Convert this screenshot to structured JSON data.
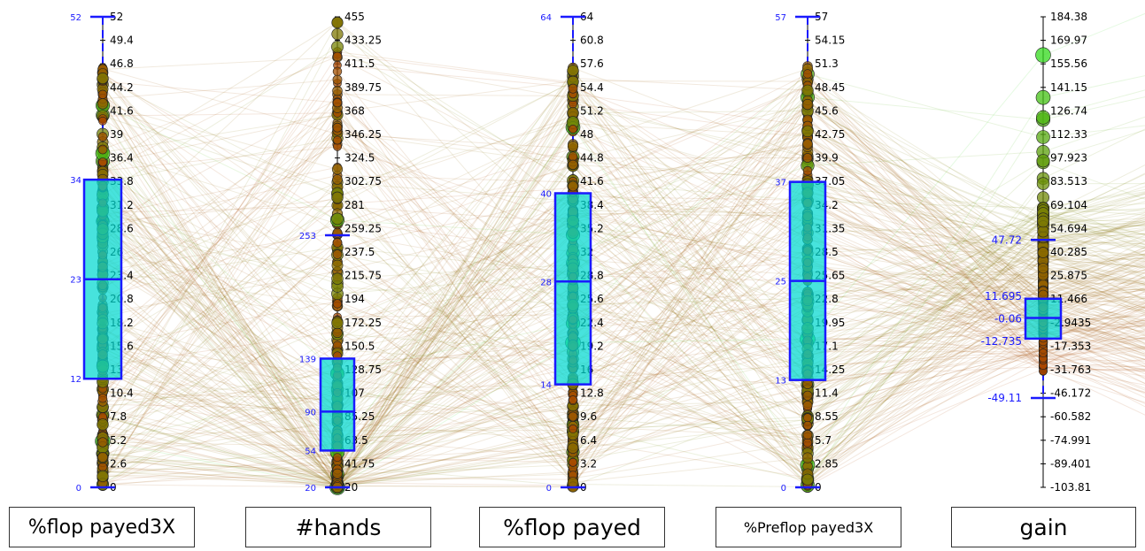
{
  "chart_data": {
    "type": "parallel-coordinates",
    "axes": [
      {
        "label": "%flop payed3X",
        "min": 0,
        "max": 52,
        "ticks": [
          "52",
          "49.4",
          "46.8",
          "44.2",
          "41.6",
          "39",
          "36.4",
          "33.8",
          "31.2",
          "28.6",
          "26",
          "23.4",
          "20.8",
          "18.2",
          "15.6",
          "13",
          "10.4",
          "7.8",
          "5.2",
          "2.6",
          "0"
        ],
        "box": {
          "q1": 12,
          "median": 23,
          "q3": 34,
          "whisker_low": 0,
          "whisker_high": 52
        },
        "box_labels": {
          "low": "0",
          "q1": "12",
          "median": "23",
          "q3": "34",
          "high": "52"
        }
      },
      {
        "label": "#hands",
        "min": 20,
        "max": 455,
        "ticks": [
          "455",
          "433.25",
          "411.5",
          "389.75",
          "368",
          "346.25",
          "324.5",
          "302.75",
          "281",
          "259.25",
          "237.5",
          "215.75",
          "194",
          "172.25",
          "150.5",
          "128.75",
          "107",
          "85.25",
          "63.5",
          "41.75",
          "20"
        ],
        "box": {
          "q1": 54,
          "median": 90,
          "q3": 139,
          "whisker_low": 20,
          "whisker_high": 253
        },
        "box_labels": {
          "low": "20",
          "q1": "54",
          "median": "90",
          "q3": "139",
          "high": "253"
        }
      },
      {
        "label": "%flop payed",
        "min": 0,
        "max": 64,
        "ticks": [
          "64",
          "60.8",
          "57.6",
          "54.4",
          "51.2",
          "48",
          "44.8",
          "41.6",
          "38.4",
          "35.2",
          "32",
          "28.8",
          "25.6",
          "22.4",
          "19.2",
          "16",
          "12.8",
          "9.6",
          "6.4",
          "3.2",
          "0"
        ],
        "box": {
          "q1": 14,
          "median": 28,
          "q3": 40,
          "whisker_low": 0,
          "whisker_high": 64
        },
        "box_labels": {
          "low": "0",
          "q1": "14",
          "median": "28",
          "q3": "40",
          "high": "64"
        }
      },
      {
        "label": "%Preflop payed3X",
        "min": 0,
        "max": 57,
        "ticks": [
          "57",
          "54.15",
          "51.3",
          "48.45",
          "45.6",
          "42.75",
          "39.9",
          "37.05",
          "34.2",
          "31.35",
          "28.5",
          "25.65",
          "22.8",
          "19.95",
          "17.1",
          "14.25",
          "11.4",
          "8.55",
          "5.7",
          "2.85",
          "0"
        ],
        "box": {
          "q1": 13,
          "median": 25,
          "q3": 37,
          "whisker_low": 0,
          "whisker_high": 57
        },
        "box_labels": {
          "low": "0",
          "q1": "13",
          "median": "25",
          "q3": "37",
          "high": "57"
        }
      },
      {
        "label": "gain",
        "min": -103.81,
        "max": 184.38,
        "ticks": [
          "184.38",
          "169.97",
          "155.56",
          "141.15",
          "126.74",
          "112.33",
          "97.923",
          "83.513",
          "69.104",
          "54.694",
          "40.285",
          "25.875",
          "11.466",
          "-2.9435",
          "-17.353",
          "-31.763",
          "-46.172",
          "-60.582",
          "-74.991",
          "-89.401",
          "-103.81"
        ],
        "box": {
          "q1": -12.735,
          "median": -0.06,
          "q3": 11.695,
          "whisker_low": -49.11,
          "whisker_high": 47.72
        },
        "box_labels": {
          "low": "-49.11",
          "q1": "-12.735",
          "median": "-0.06",
          "q3": "11.695",
          "high": "47.72"
        }
      }
    ],
    "color_scale": {
      "low": "#cc2200",
      "mid": "#8a6a00",
      "high": "#22ee22"
    },
    "box_fill": "#00d8d0",
    "box_stroke": "#1a1aff",
    "grid": false
  }
}
